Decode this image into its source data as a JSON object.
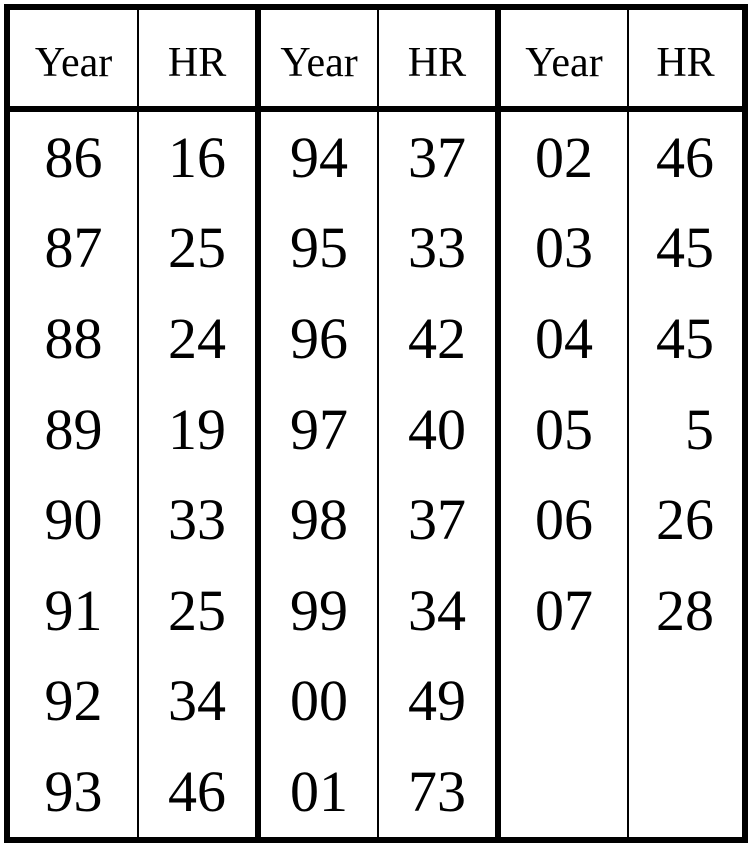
{
  "header": {
    "year": "Year",
    "hr": "HR"
  },
  "rows": [
    [
      "86",
      "16",
      "94",
      "37",
      "02",
      "46"
    ],
    [
      "87",
      "25",
      "95",
      "33",
      "03",
      "45"
    ],
    [
      "88",
      "24",
      "96",
      "42",
      "04",
      "45"
    ],
    [
      "89",
      "19",
      "97",
      "40",
      "05",
      "5"
    ],
    [
      "90",
      "33",
      "98",
      "37",
      "06",
      "26"
    ],
    [
      "91",
      "25",
      "99",
      "34",
      "07",
      "28"
    ],
    [
      "92",
      "34",
      "00",
      "49",
      "",
      ""
    ],
    [
      "93",
      "46",
      "01",
      "73",
      "",
      ""
    ]
  ]
}
